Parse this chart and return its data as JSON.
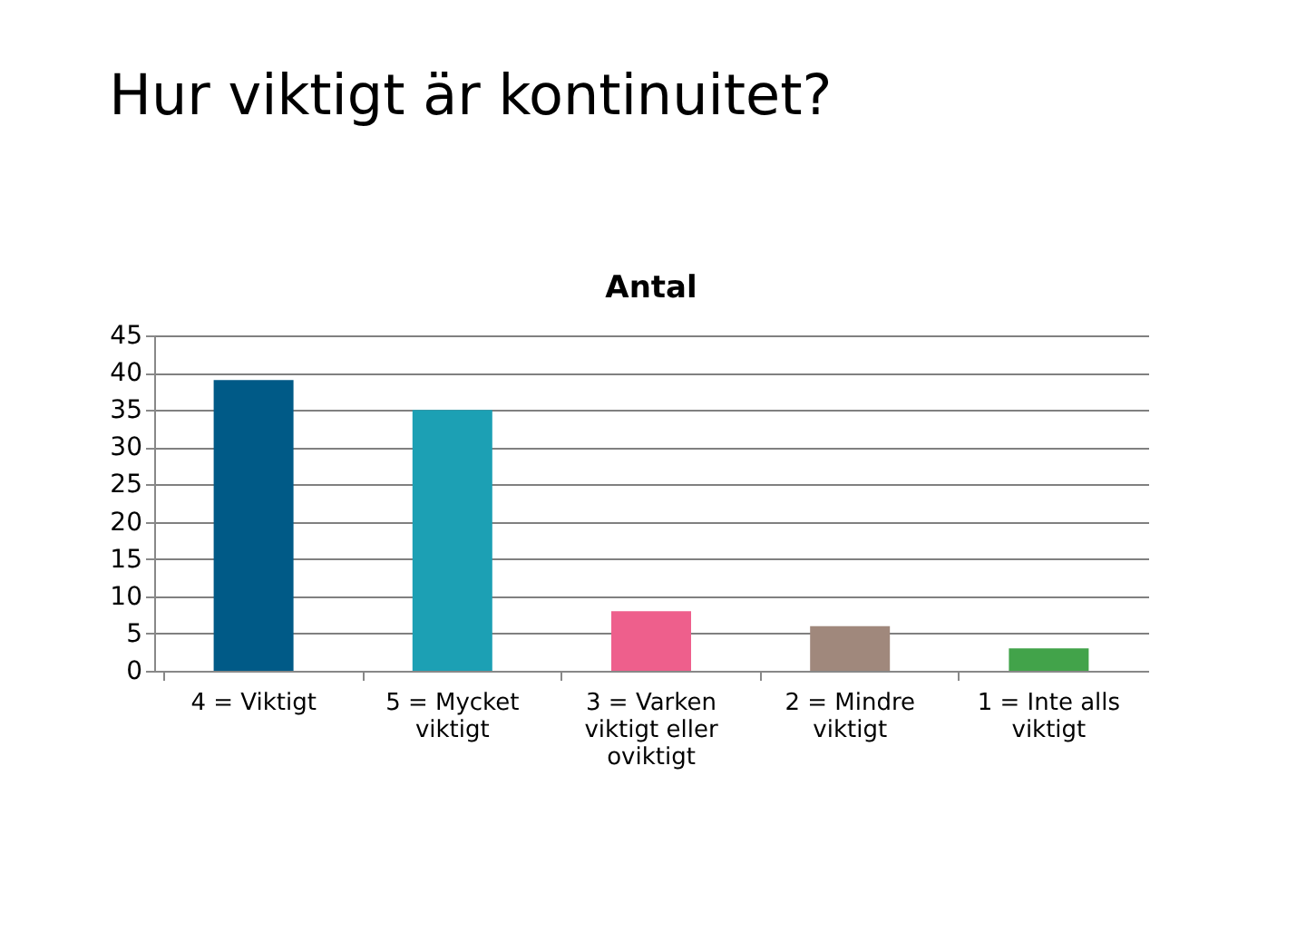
{
  "chart_data": {
    "type": "bar",
    "title": "Hur viktigt är kontinuitet?",
    "subtitle": "Antal",
    "categories": [
      "4 = Viktigt",
      "5 = Mycket viktigt",
      "3 = Varken viktigt eller oviktigt",
      "2 = Mindre viktigt",
      "1 = Inte alls viktigt"
    ],
    "values": [
      39,
      35,
      8,
      6,
      3
    ],
    "colors": [
      "#005a87",
      "#1ca0b4",
      "#ee5f8c",
      "#a0887c",
      "#42a34a"
    ],
    "ylim": [
      0,
      45
    ],
    "yticks": [
      0,
      5,
      10,
      15,
      20,
      25,
      30,
      35,
      40,
      45
    ],
    "grid": "y"
  }
}
